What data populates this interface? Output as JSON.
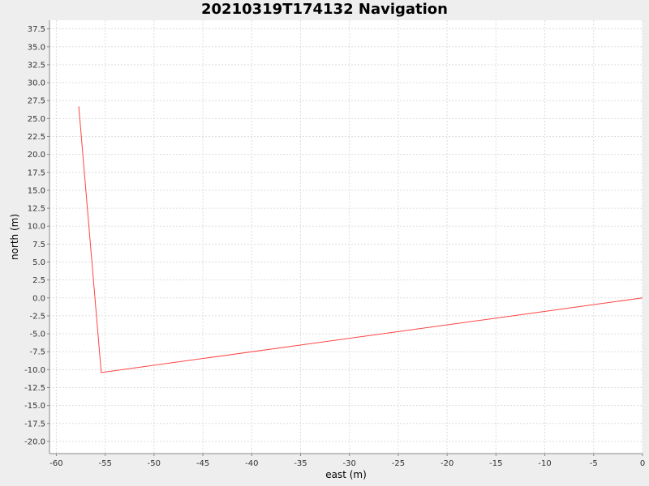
{
  "chart_data": {
    "type": "line",
    "title": "20210319T174132 Navigation",
    "xlabel": "east (m)",
    "ylabel": "north (m)",
    "xlim": [
      -60.7,
      0
    ],
    "ylim": [
      -21.7,
      38.7
    ],
    "x_ticks": [
      "-60",
      "-55",
      "-50",
      "-45",
      "-40",
      "-35",
      "-30",
      "-25",
      "-20",
      "-15",
      "-10",
      "-5",
      "0"
    ],
    "y_ticks": [
      "37.5",
      "35.0",
      "32.5",
      "30.0",
      "27.5",
      "25.0",
      "22.5",
      "20.0",
      "17.5",
      "15.0",
      "12.5",
      "10.0",
      "7.5",
      "5.0",
      "2.5",
      "0.0",
      "-2.5",
      "-5.0",
      "-7.5",
      "-10.0",
      "-12.5",
      "-15.0",
      "-17.5",
      "-20.0"
    ],
    "grid": true,
    "series": [
      {
        "color": "#ff4444",
        "points": [
          [
            -57.7,
            26.7
          ],
          [
            -55.4,
            -10.4
          ],
          [
            0,
            0
          ]
        ]
      }
    ]
  }
}
